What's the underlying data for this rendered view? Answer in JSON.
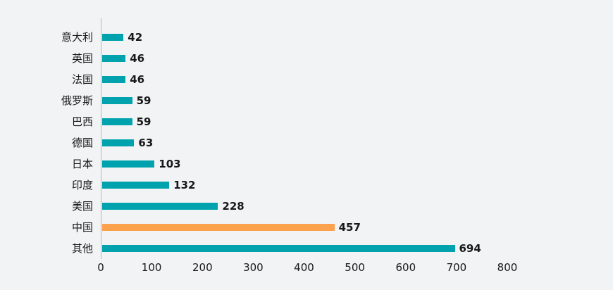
{
  "chart_data": {
    "type": "bar",
    "orientation": "horizontal",
    "title": "",
    "xlabel": "",
    "ylabel": "",
    "categories": [
      "意大利",
      "英国",
      "法国",
      "俄罗斯",
      "巴西",
      "德国",
      "日本",
      "印度",
      "美国",
      "中国",
      "其他"
    ],
    "values": [
      42,
      46,
      46,
      59,
      59,
      63,
      103,
      132,
      228,
      457,
      694
    ],
    "bar_colors": [
      "#00A3AD",
      "#00A3AD",
      "#00A3AD",
      "#00A3AD",
      "#00A3AD",
      "#00A3AD",
      "#00A3AD",
      "#00A3AD",
      "#00A3AD",
      "#FCA24D",
      "#00A3AD"
    ],
    "highlight_category": "中国",
    "xlim": [
      0,
      800
    ],
    "x_ticks": [
      0,
      100,
      200,
      300,
      400,
      500,
      600,
      700,
      800
    ],
    "grid": false,
    "legend": false,
    "colors": {
      "default_bar": "#00A3AD",
      "highlight_bar": "#FCA24D",
      "background": "#F2F3F4",
      "axis_line": "#B4B6B8",
      "text": "#17181A"
    }
  }
}
